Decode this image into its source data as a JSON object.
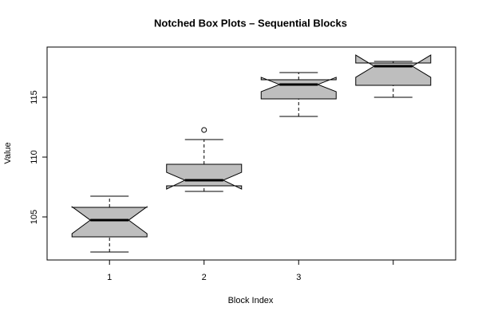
{
  "chart_data": {
    "type": "boxplot",
    "title": "Notched Box Plots – Sequential Blocks",
    "x_label": "Block Index",
    "y_label": "Value",
    "categories": [
      "1",
      "2",
      "3",
      null
    ],
    "color": "#bebebe",
    "boxes": [
      {
        "min": 102.07,
        "q1": 103.33,
        "notch_low": 103.6,
        "median": 104.73,
        "notch_high": 105.85,
        "q3": 105.8,
        "max": 106.73,
        "outliers": []
      },
      {
        "min": 107.13,
        "q1": 107.6,
        "notch_low": 107.33,
        "median": 108.07,
        "notch_high": 108.73,
        "q3": 109.4,
        "max": 111.47,
        "outliers": [
          112.27
        ]
      },
      {
        "min": 113.4,
        "q1": 114.87,
        "notch_low": 115.47,
        "median": 116.07,
        "notch_high": 116.67,
        "q3": 116.47,
        "max": 117.07,
        "outliers": []
      },
      {
        "min": 115.0,
        "q1": 116.0,
        "notch_low": 116.67,
        "median": 117.6,
        "notch_high": 118.53,
        "q3": 117.87,
        "max": 118.0,
        "outliers": []
      }
    ],
    "ylim": [
      101.4,
      119.2
    ],
    "yticks": [
      105,
      110,
      115
    ]
  }
}
